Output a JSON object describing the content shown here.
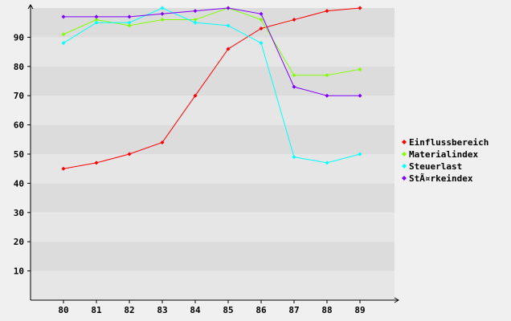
{
  "chart_data": {
    "type": "line",
    "title": "",
    "xlabel": "",
    "ylabel": "",
    "categories": [
      "80",
      "81",
      "82",
      "83",
      "84",
      "85",
      "86",
      "87",
      "88",
      "89"
    ],
    "ylim": [
      0,
      100
    ],
    "yticks": [
      10,
      20,
      30,
      40,
      50,
      60,
      70,
      80,
      90
    ],
    "grid": "horizontal alternating bands",
    "legend_position": "right",
    "series": [
      {
        "name": "Einflussbereich",
        "color": "#ff0000",
        "values": [
          45,
          47,
          50,
          54,
          70,
          86,
          93,
          96,
          99,
          100
        ]
      },
      {
        "name": "Materialindex",
        "color": "#80ff00",
        "values": [
          91,
          96,
          94,
          96,
          96,
          100,
          96,
          77,
          77,
          79
        ]
      },
      {
        "name": "Steuerlast",
        "color": "#00ffff",
        "values": [
          88,
          95,
          95,
          100,
          95,
          94,
          88,
          49,
          47,
          50
        ]
      },
      {
        "name": "StÃ¤rkeindex",
        "color": "#8000ff",
        "values": [
          97,
          97,
          97,
          98,
          99,
          100,
          98,
          73,
          70,
          70
        ]
      }
    ]
  }
}
